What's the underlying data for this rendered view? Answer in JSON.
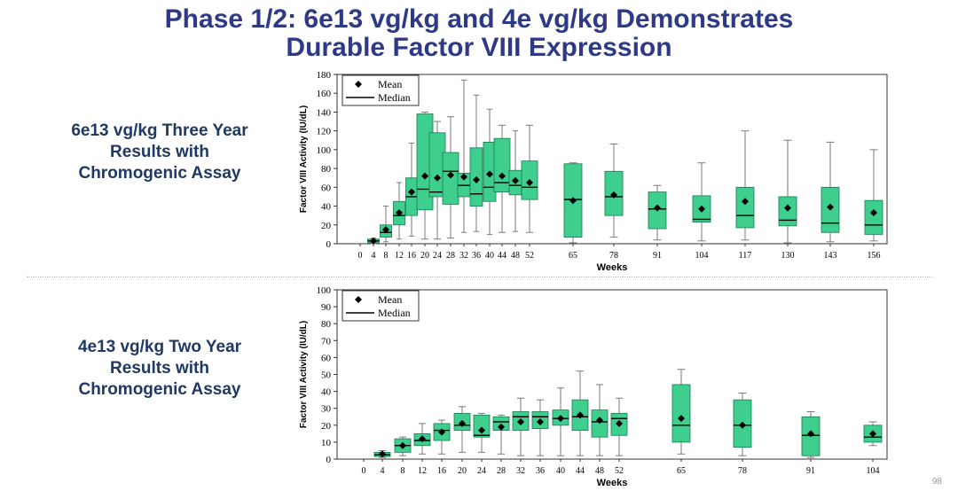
{
  "title": {
    "line1": "Phase 1/2: 6e13 vg/kg and 4e vg/kg Demonstrates",
    "line2": "Durable Factor VIII Expression"
  },
  "panel1": {
    "label": [
      "6e13 vg/kg Three Year",
      "Results with",
      "Chromogenic Assay"
    ]
  },
  "panel2": {
    "label": [
      "4e13 vg/kg Two Year",
      "Results with",
      "Chromogenic Assay"
    ]
  },
  "page_number": "98",
  "chart_data": [
    {
      "type": "box",
      "title": "6e13 vg/kg Three Year Results with Chromogenic Assay",
      "xlabel": "Weeks",
      "ylabel": "Factor VIII Activity (IU/dL)",
      "ylim": [
        0,
        180
      ],
      "yticks": [
        0,
        20,
        40,
        60,
        80,
        100,
        120,
        140,
        160,
        180
      ],
      "legend": {
        "position": "top-left",
        "items": [
          "Mean",
          "Median"
        ]
      },
      "colors": {
        "box": "#3ecf8e",
        "boxStroke": "#1a7a4f",
        "whisker": "#7a7a7a",
        "mean": "#000000"
      },
      "tick_labels": [
        "0",
        "4",
        "8",
        "12",
        "16",
        "20",
        "24",
        "28",
        "32",
        "36",
        "40",
        "44",
        "48",
        "52",
        "65",
        "78",
        "91",
        "104",
        "117",
        "130",
        "143",
        "156"
      ],
      "boxes": [
        {
          "week": "4",
          "min": 0,
          "q1": 1,
          "median": 3,
          "q3": 5,
          "max": 6,
          "mean": 3
        },
        {
          "week": "8",
          "min": 2,
          "q1": 7,
          "median": 12,
          "q3": 20,
          "max": 40,
          "mean": 15
        },
        {
          "week": "12",
          "min": 5,
          "q1": 20,
          "median": 30,
          "q3": 45,
          "max": 65,
          "mean": 33
        },
        {
          "week": "16",
          "min": 8,
          "q1": 30,
          "median": 50,
          "q3": 70,
          "max": 107,
          "mean": 55
        },
        {
          "week": "20",
          "min": 5,
          "q1": 36,
          "median": 58,
          "q3": 138,
          "max": 140,
          "mean": 72
        },
        {
          "week": "24",
          "min": 5,
          "q1": 50,
          "median": 55,
          "q3": 118,
          "max": 130,
          "mean": 70
        },
        {
          "week": "28",
          "min": 6,
          "q1": 42,
          "median": 77,
          "q3": 97,
          "max": 135,
          "mean": 73
        },
        {
          "week": "32",
          "min": 12,
          "q1": 50,
          "median": 62,
          "q3": 75,
          "max": 174,
          "mean": 71
        },
        {
          "week": "36",
          "min": 13,
          "q1": 40,
          "median": 53,
          "q3": 102,
          "max": 158,
          "mean": 68
        },
        {
          "week": "40",
          "min": 10,
          "q1": 45,
          "median": 60,
          "q3": 108,
          "max": 143,
          "mean": 74
        },
        {
          "week": "44",
          "min": 12,
          "q1": 55,
          "median": 65,
          "q3": 112,
          "max": 126,
          "mean": 72
        },
        {
          "week": "48",
          "min": 13,
          "q1": 52,
          "median": 62,
          "q3": 78,
          "max": 120,
          "mean": 67
        },
        {
          "week": "52",
          "min": 12,
          "q1": 47,
          "median": 60,
          "q3": 88,
          "max": 126,
          "mean": 65
        },
        {
          "week": "65",
          "min": 1,
          "q1": 7,
          "median": 47,
          "q3": 85,
          "max": 86,
          "mean": 46
        },
        {
          "week": "78",
          "min": 7,
          "q1": 30,
          "median": 50,
          "q3": 77,
          "max": 106,
          "mean": 52
        },
        {
          "week": "91",
          "min": 4,
          "q1": 16,
          "median": 37,
          "q3": 55,
          "max": 62,
          "mean": 38
        },
        {
          "week": "104",
          "min": 3,
          "q1": 23,
          "median": 26,
          "q3": 51,
          "max": 86,
          "mean": 37
        },
        {
          "week": "117",
          "min": 4,
          "q1": 17,
          "median": 30,
          "q3": 60,
          "max": 120,
          "mean": 45
        },
        {
          "week": "130",
          "min": 1,
          "q1": 19,
          "median": 25,
          "q3": 50,
          "max": 110,
          "mean": 38
        },
        {
          "week": "143",
          "min": 2,
          "q1": 12,
          "median": 22,
          "q3": 60,
          "max": 108,
          "mean": 39
        },
        {
          "week": "156",
          "min": 3,
          "q1": 10,
          "median": 20,
          "q3": 46,
          "max": 100,
          "mean": 33
        }
      ]
    },
    {
      "type": "box",
      "title": "4e13 vg/kg Two Year Results with Chromogenic Assay",
      "xlabel": "Weeks",
      "ylabel": "Factor VIII Activity (IU/dL)",
      "ylim": [
        0,
        100
      ],
      "yticks": [
        0,
        10,
        20,
        30,
        40,
        50,
        60,
        70,
        80,
        90,
        100
      ],
      "legend": {
        "position": "top-left",
        "items": [
          "Mean",
          "Median"
        ]
      },
      "colors": {
        "box": "#3ecf8e",
        "boxStroke": "#1a7a4f",
        "whisker": "#7a7a7a",
        "mean": "#000000"
      },
      "tick_labels": [
        "0",
        "4",
        "8",
        "12",
        "16",
        "20",
        "24",
        "28",
        "32",
        "36",
        "40",
        "44",
        "48",
        "52",
        "65",
        "78",
        "91",
        "104"
      ],
      "boxes": [
        {
          "week": "4",
          "min": 1,
          "q1": 1.5,
          "median": 2.5,
          "q3": 4,
          "max": 5,
          "mean": 3
        },
        {
          "week": "8",
          "min": 2,
          "q1": 4,
          "median": 8,
          "q3": 12,
          "max": 13,
          "mean": 8
        },
        {
          "week": "12",
          "min": 3,
          "q1": 8,
          "median": 11,
          "q3": 15,
          "max": 21,
          "mean": 12
        },
        {
          "week": "16",
          "min": 3,
          "q1": 11,
          "median": 17,
          "q3": 21,
          "max": 23,
          "mean": 16
        },
        {
          "week": "20",
          "min": 4,
          "q1": 17,
          "median": 20,
          "q3": 27,
          "max": 31,
          "mean": 21
        },
        {
          "week": "24",
          "min": 4,
          "q1": 13,
          "median": 14,
          "q3": 26,
          "max": 27,
          "mean": 17
        },
        {
          "week": "28",
          "min": 3,
          "q1": 17,
          "median": 22,
          "q3": 25,
          "max": 26,
          "mean": 19
        },
        {
          "week": "32",
          "min": 2,
          "q1": 17,
          "median": 25,
          "q3": 28,
          "max": 36,
          "mean": 22
        },
        {
          "week": "36",
          "min": 2,
          "q1": 18,
          "median": 25,
          "q3": 28,
          "max": 35,
          "mean": 22
        },
        {
          "week": "40",
          "min": 2,
          "q1": 20,
          "median": 24,
          "q3": 29,
          "max": 42,
          "mean": 24
        },
        {
          "week": "44",
          "min": 2,
          "q1": 17,
          "median": 25,
          "q3": 35,
          "max": 52,
          "mean": 26
        },
        {
          "week": "48",
          "min": 2,
          "q1": 13,
          "median": 22,
          "q3": 29,
          "max": 44,
          "mean": 23
        },
        {
          "week": "52",
          "min": 2,
          "q1": 14,
          "median": 24,
          "q3": 27,
          "max": 36,
          "mean": 21
        },
        {
          "week": "65",
          "min": 3,
          "q1": 10,
          "median": 20,
          "q3": 44,
          "max": 53,
          "mean": 24
        },
        {
          "week": "78",
          "min": 2,
          "q1": 7,
          "median": 20,
          "q3": 35,
          "max": 39,
          "mean": 20
        },
        {
          "week": "91",
          "min": 1,
          "q1": 2,
          "median": 14,
          "q3": 25,
          "max": 28,
          "mean": 15
        },
        {
          "week": "104",
          "min": 8,
          "q1": 10,
          "median": 13,
          "q3": 20,
          "max": 22,
          "mean": 15
        }
      ]
    }
  ]
}
